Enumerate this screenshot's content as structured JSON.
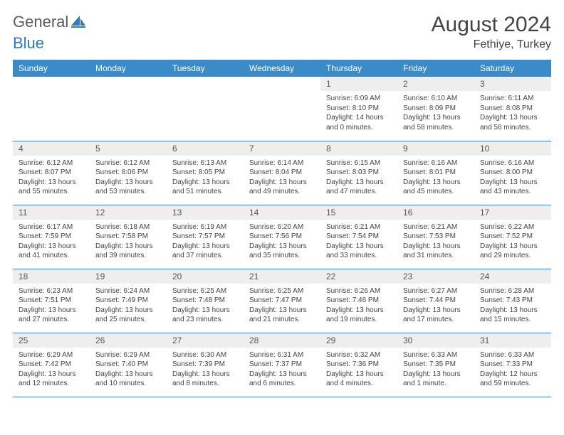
{
  "logo": {
    "part1": "General",
    "part2": "Blue"
  },
  "title": "August 2024",
  "location": "Fethiye, Turkey",
  "colors": {
    "header_bg": "#3b8bc9",
    "header_fg": "#ffffff",
    "daynum_bg": "#eeeeee",
    "row_border": "#3b8bc9",
    "text": "#444444",
    "logo_gray": "#5a5a5a",
    "logo_blue": "#2a7bbf"
  },
  "weekdays": [
    "Sunday",
    "Monday",
    "Tuesday",
    "Wednesday",
    "Thursday",
    "Friday",
    "Saturday"
  ],
  "cells": [
    {
      "blank": true
    },
    {
      "blank": true
    },
    {
      "blank": true
    },
    {
      "blank": true
    },
    {
      "day": "1",
      "sunrise": "6:09 AM",
      "sunset": "8:10 PM",
      "daylight": "14 hours and 0 minutes."
    },
    {
      "day": "2",
      "sunrise": "6:10 AM",
      "sunset": "8:09 PM",
      "daylight": "13 hours and 58 minutes."
    },
    {
      "day": "3",
      "sunrise": "6:11 AM",
      "sunset": "8:08 PM",
      "daylight": "13 hours and 56 minutes."
    },
    {
      "day": "4",
      "sunrise": "6:12 AM",
      "sunset": "8:07 PM",
      "daylight": "13 hours and 55 minutes."
    },
    {
      "day": "5",
      "sunrise": "6:12 AM",
      "sunset": "8:06 PM",
      "daylight": "13 hours and 53 minutes."
    },
    {
      "day": "6",
      "sunrise": "6:13 AM",
      "sunset": "8:05 PM",
      "daylight": "13 hours and 51 minutes."
    },
    {
      "day": "7",
      "sunrise": "6:14 AM",
      "sunset": "8:04 PM",
      "daylight": "13 hours and 49 minutes."
    },
    {
      "day": "8",
      "sunrise": "6:15 AM",
      "sunset": "8:03 PM",
      "daylight": "13 hours and 47 minutes."
    },
    {
      "day": "9",
      "sunrise": "6:16 AM",
      "sunset": "8:01 PM",
      "daylight": "13 hours and 45 minutes."
    },
    {
      "day": "10",
      "sunrise": "6:16 AM",
      "sunset": "8:00 PM",
      "daylight": "13 hours and 43 minutes."
    },
    {
      "day": "11",
      "sunrise": "6:17 AM",
      "sunset": "7:59 PM",
      "daylight": "13 hours and 41 minutes."
    },
    {
      "day": "12",
      "sunrise": "6:18 AM",
      "sunset": "7:58 PM",
      "daylight": "13 hours and 39 minutes."
    },
    {
      "day": "13",
      "sunrise": "6:19 AM",
      "sunset": "7:57 PM",
      "daylight": "13 hours and 37 minutes."
    },
    {
      "day": "14",
      "sunrise": "6:20 AM",
      "sunset": "7:56 PM",
      "daylight": "13 hours and 35 minutes."
    },
    {
      "day": "15",
      "sunrise": "6:21 AM",
      "sunset": "7:54 PM",
      "daylight": "13 hours and 33 minutes."
    },
    {
      "day": "16",
      "sunrise": "6:21 AM",
      "sunset": "7:53 PM",
      "daylight": "13 hours and 31 minutes."
    },
    {
      "day": "17",
      "sunrise": "6:22 AM",
      "sunset": "7:52 PM",
      "daylight": "13 hours and 29 minutes."
    },
    {
      "day": "18",
      "sunrise": "6:23 AM",
      "sunset": "7:51 PM",
      "daylight": "13 hours and 27 minutes."
    },
    {
      "day": "19",
      "sunrise": "6:24 AM",
      "sunset": "7:49 PM",
      "daylight": "13 hours and 25 minutes."
    },
    {
      "day": "20",
      "sunrise": "6:25 AM",
      "sunset": "7:48 PM",
      "daylight": "13 hours and 23 minutes."
    },
    {
      "day": "21",
      "sunrise": "6:25 AM",
      "sunset": "7:47 PM",
      "daylight": "13 hours and 21 minutes."
    },
    {
      "day": "22",
      "sunrise": "6:26 AM",
      "sunset": "7:46 PM",
      "daylight": "13 hours and 19 minutes."
    },
    {
      "day": "23",
      "sunrise": "6:27 AM",
      "sunset": "7:44 PM",
      "daylight": "13 hours and 17 minutes."
    },
    {
      "day": "24",
      "sunrise": "6:28 AM",
      "sunset": "7:43 PM",
      "daylight": "13 hours and 15 minutes."
    },
    {
      "day": "25",
      "sunrise": "6:29 AM",
      "sunset": "7:42 PM",
      "daylight": "13 hours and 12 minutes."
    },
    {
      "day": "26",
      "sunrise": "6:29 AM",
      "sunset": "7:40 PM",
      "daylight": "13 hours and 10 minutes."
    },
    {
      "day": "27",
      "sunrise": "6:30 AM",
      "sunset": "7:39 PM",
      "daylight": "13 hours and 8 minutes."
    },
    {
      "day": "28",
      "sunrise": "6:31 AM",
      "sunset": "7:37 PM",
      "daylight": "13 hours and 6 minutes."
    },
    {
      "day": "29",
      "sunrise": "6:32 AM",
      "sunset": "7:36 PM",
      "daylight": "13 hours and 4 minutes."
    },
    {
      "day": "30",
      "sunrise": "6:33 AM",
      "sunset": "7:35 PM",
      "daylight": "13 hours and 1 minute."
    },
    {
      "day": "31",
      "sunrise": "6:33 AM",
      "sunset": "7:33 PM",
      "daylight": "12 hours and 59 minutes."
    }
  ],
  "labels": {
    "sunrise": "Sunrise: ",
    "sunset": "Sunset: ",
    "daylight": "Daylight: "
  }
}
